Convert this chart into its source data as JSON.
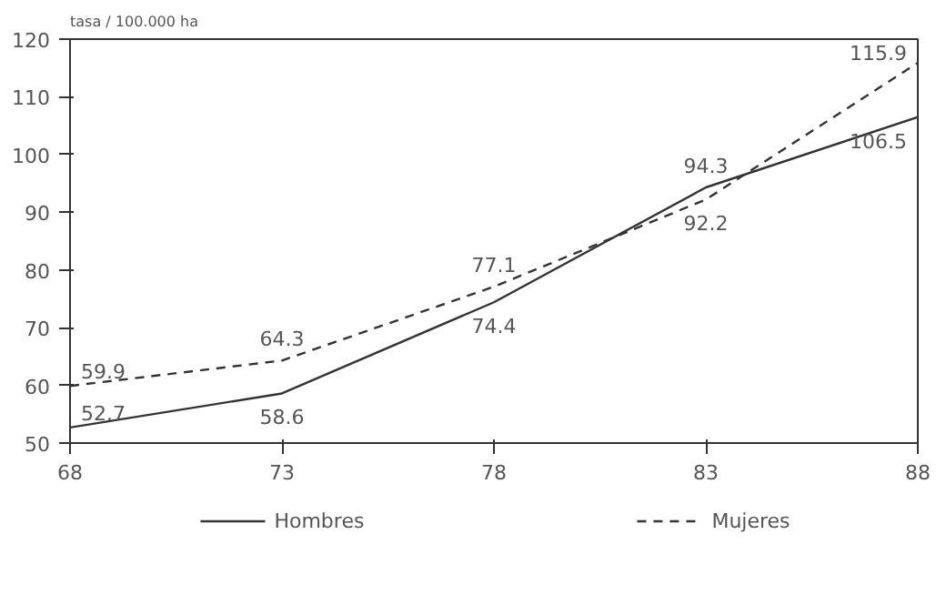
{
  "chart_data": {
    "type": "line",
    "ylabel": "tasa / 100.000 ha",
    "x": [
      68,
      73,
      78,
      83,
      88
    ],
    "xlim": [
      68,
      88
    ],
    "xticks": [
      68,
      73,
      78,
      83,
      88
    ],
    "ylim": [
      50,
      120
    ],
    "yticks": [
      50,
      60,
      70,
      80,
      90,
      100,
      110,
      120
    ],
    "grid": false,
    "legend": "bottom",
    "data_labels": true,
    "marker": "none",
    "series": [
      {
        "name": "Hombres",
        "color": "#333333",
        "line_style": "solid",
        "values": [
          52.7,
          58.6,
          74.4,
          94.3,
          106.5
        ]
      },
      {
        "name": "Mujeres",
        "color": "#333333",
        "line_style": "dashed",
        "values": [
          59.9,
          64.3,
          77.1,
          92.2,
          115.9
        ]
      }
    ]
  }
}
